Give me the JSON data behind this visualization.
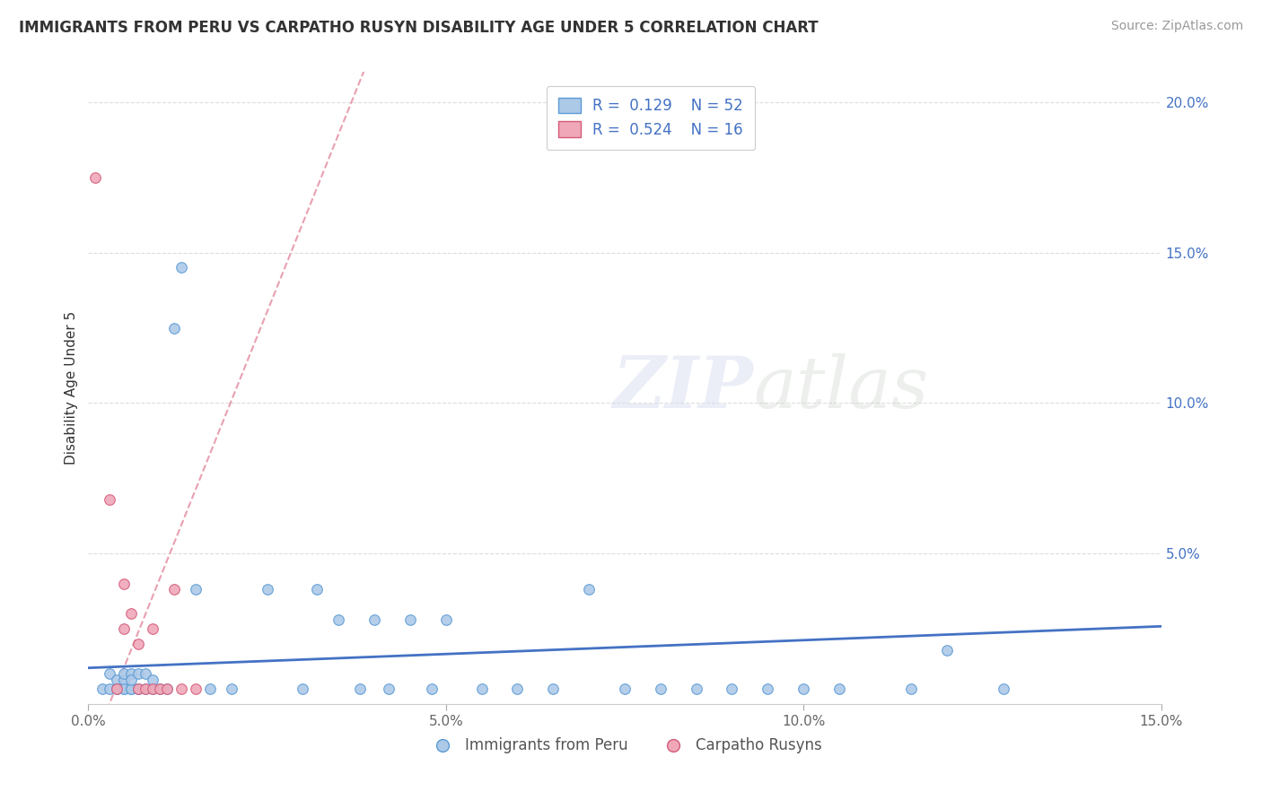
{
  "title": "IMMIGRANTS FROM PERU VS CARPATHO RUSYN DISABILITY AGE UNDER 5 CORRELATION CHART",
  "source": "Source: ZipAtlas.com",
  "xlabel_legend_1": "Immigrants from Peru",
  "xlabel_legend_2": "Carpatho Rusyns",
  "ylabel": "Disability Age Under 5",
  "r1": 0.129,
  "n1": 52,
  "r2": 0.524,
  "n2": 16,
  "color_peru": "#adc9e8",
  "color_rusyn": "#f0a8b8",
  "color_edge_peru": "#5b9bd5",
  "color_edge_rusyn": "#d45b7a",
  "color_line_peru": "#4472c4",
  "color_line_rusyn": "#d45b7a",
  "color_dashed_rusyn": "#e8a0b0",
  "xlim": [
    0.0,
    0.15
  ],
  "ylim": [
    0.0,
    0.21
  ],
  "xticks": [
    0.0,
    0.05,
    0.1,
    0.15
  ],
  "yticks": [
    0.0,
    0.05,
    0.1,
    0.15,
    0.2
  ],
  "ytick_labels_right": [
    "",
    "5.0%",
    "10.0%",
    "15.0%",
    "20.0%"
  ],
  "xtick_labels": [
    "0.0%",
    "5.0%",
    "10.0%",
    "15.0%"
  ],
  "watermark_zip": "ZIP",
  "watermark_atlas": "atlas",
  "grid_color": "#dddddd",
  "peru_x": [
    0.002,
    0.003,
    0.003,
    0.004,
    0.004,
    0.004,
    0.005,
    0.005,
    0.005,
    0.005,
    0.006,
    0.006,
    0.006,
    0.006,
    0.007,
    0.007,
    0.007,
    0.008,
    0.008,
    0.009,
    0.009,
    0.01,
    0.011,
    0.012,
    0.013,
    0.015,
    0.017,
    0.02,
    0.025,
    0.03,
    0.032,
    0.035,
    0.038,
    0.04,
    0.042,
    0.045,
    0.048,
    0.05,
    0.055,
    0.06,
    0.065,
    0.07,
    0.075,
    0.08,
    0.085,
    0.09,
    0.095,
    0.1,
    0.105,
    0.115,
    0.12,
    0.128
  ],
  "peru_y": [
    0.005,
    0.005,
    0.01,
    0.005,
    0.008,
    0.005,
    0.005,
    0.008,
    0.01,
    0.005,
    0.005,
    0.01,
    0.005,
    0.008,
    0.005,
    0.01,
    0.005,
    0.005,
    0.01,
    0.005,
    0.008,
    0.005,
    0.005,
    0.125,
    0.145,
    0.038,
    0.005,
    0.005,
    0.038,
    0.005,
    0.038,
    0.028,
    0.005,
    0.028,
    0.005,
    0.028,
    0.005,
    0.028,
    0.005,
    0.005,
    0.005,
    0.038,
    0.005,
    0.005,
    0.005,
    0.005,
    0.005,
    0.005,
    0.005,
    0.005,
    0.018,
    0.005
  ],
  "rusyn_x": [
    0.001,
    0.003,
    0.004,
    0.005,
    0.005,
    0.006,
    0.007,
    0.007,
    0.008,
    0.009,
    0.009,
    0.01,
    0.011,
    0.012,
    0.013,
    0.015
  ],
  "rusyn_y": [
    0.175,
    0.068,
    0.005,
    0.04,
    0.025,
    0.03,
    0.005,
    0.02,
    0.005,
    0.005,
    0.025,
    0.005,
    0.005,
    0.038,
    0.005,
    0.005
  ]
}
